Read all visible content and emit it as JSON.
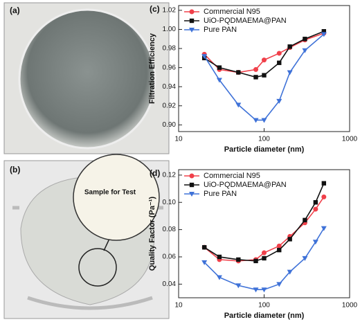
{
  "photos": [
    {
      "label": "(a)"
    },
    {
      "label": "(b)",
      "annotation": "Sample for Test"
    }
  ],
  "chart_data": [
    {
      "type": "line",
      "panel_label": "(c)",
      "x_label": "Particle diameter (nm)",
      "y_label": "Filtration Efficiency",
      "x": [
        20,
        30,
        50,
        80,
        100,
        150,
        200,
        300,
        500
      ],
      "xscale": "log",
      "xlim": [
        10,
        1000
      ],
      "xticks": [
        10,
        100,
        1000
      ],
      "ylim": [
        0.893,
        1.025
      ],
      "yticks": [
        {
          "value": 0.9,
          "label": "0.90"
        },
        0.92,
        0.94,
        0.96,
        0.98,
        {
          "value": 1.0,
          "label": "1.00"
        },
        1.02
      ],
      "legend": "upper left",
      "series": [
        {
          "name": "Commercial N95",
          "color": "#f0404a",
          "marker": "circle",
          "values": [
            0.974,
            0.958,
            0.955,
            0.958,
            0.968,
            0.975,
            0.981,
            0.989,
            0.996
          ]
        },
        {
          "name": "UiO-PQDMAEMA@PAN",
          "color": "#111111",
          "marker": "square",
          "values": [
            0.97,
            0.96,
            0.955,
            0.95,
            0.952,
            0.965,
            0.982,
            0.99,
            0.998
          ]
        },
        {
          "name": "Pure PAN",
          "color": "#3f72d8",
          "marker": "triangle",
          "values": [
            0.972,
            0.947,
            0.921,
            0.905,
            0.905,
            0.925,
            0.955,
            0.978,
            0.995
          ]
        }
      ]
    },
    {
      "type": "line",
      "panel_label": "(d)",
      "x_label": "Particle diameter (nm)",
      "y_label": "Quality Factor (Pa⁻¹)",
      "x": [
        20,
        30,
        50,
        80,
        100,
        150,
        200,
        300,
        400,
        500
      ],
      "xscale": "log",
      "xlim": [
        10,
        1000
      ],
      "xticks": [
        10,
        100,
        1000
      ],
      "ylim": [
        0.03,
        0.124
      ],
      "yticks": [
        0.04,
        0.06,
        0.08,
        {
          "value": 0.1,
          "label": "0.10"
        },
        0.12
      ],
      "legend": "upper left",
      "series": [
        {
          "name": "Commercial N95",
          "color": "#f0404a",
          "marker": "circle",
          "values": [
            0.067,
            0.058,
            0.057,
            0.058,
            0.063,
            0.068,
            0.075,
            0.085,
            0.095,
            0.104
          ]
        },
        {
          "name": "UiO-PQDMAEMA@PAN",
          "color": "#111111",
          "marker": "square",
          "values": [
            0.067,
            0.06,
            0.058,
            0.057,
            0.059,
            0.065,
            0.073,
            0.087,
            0.1,
            0.114
          ]
        },
        {
          "name": "Pure PAN",
          "color": "#3f72d8",
          "marker": "triangle",
          "values": [
            0.056,
            0.045,
            0.039,
            0.036,
            0.036,
            0.04,
            0.049,
            0.059,
            0.071,
            0.081
          ]
        }
      ]
    }
  ]
}
